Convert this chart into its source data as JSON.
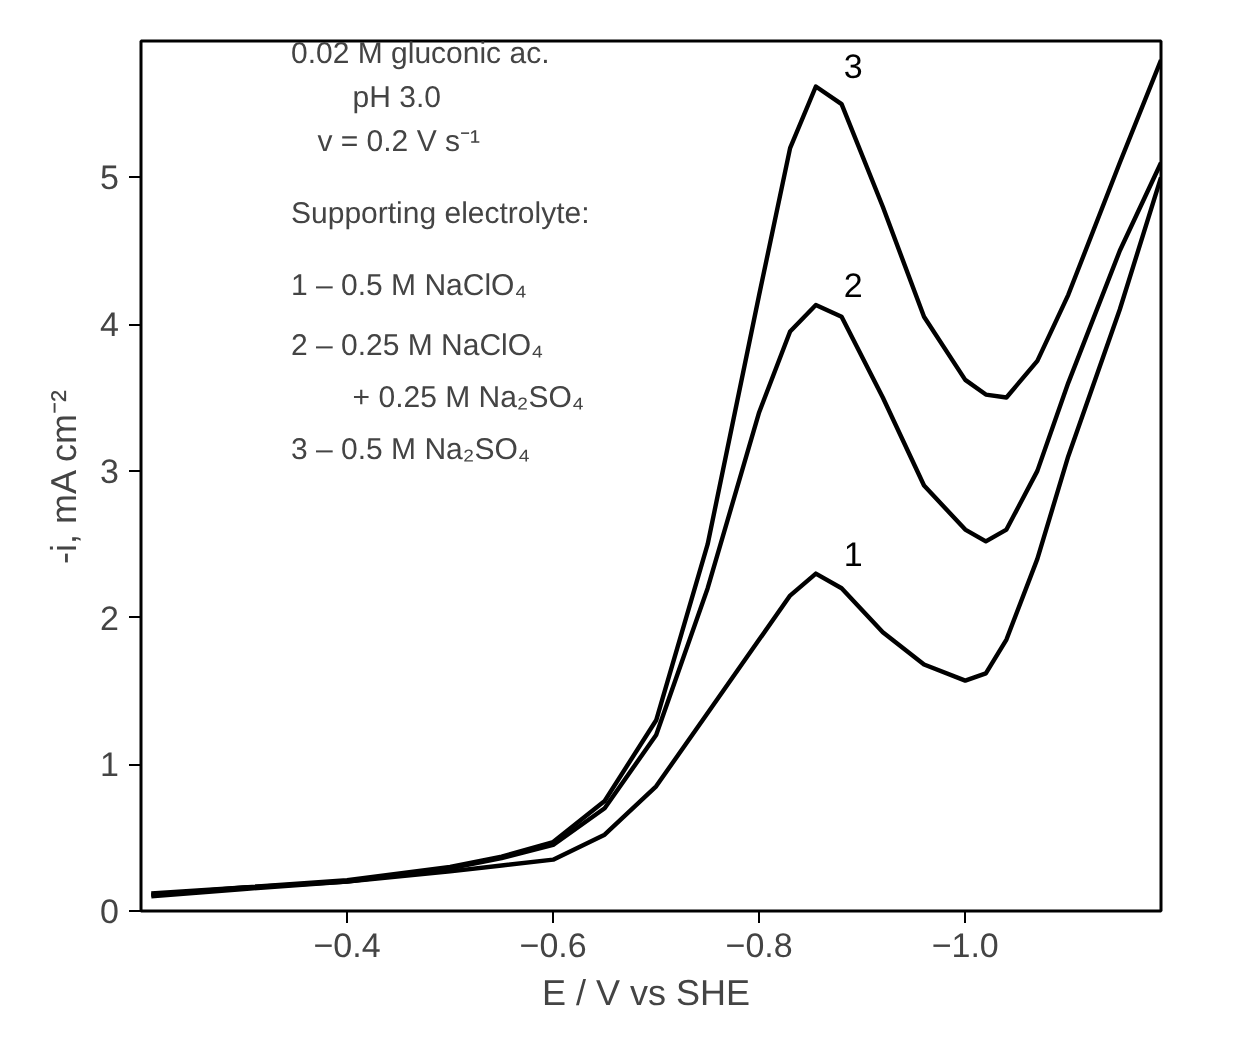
{
  "chart_data": {
    "type": "line",
    "xlabel": "E / V vs  SHE",
    "ylabel": "-i, mA cm⁻²",
    "xlim": [
      -0.2,
      -1.19
    ],
    "ylim": [
      0,
      5.93
    ],
    "xticks": [
      {
        "value": -0.4,
        "label": "−0.4"
      },
      {
        "value": -0.6,
        "label": "−0.6"
      },
      {
        "value": -0.8,
        "label": "−0.8"
      },
      {
        "value": -1.0,
        "label": "−1.0"
      }
    ],
    "yticks": [
      0,
      1,
      2,
      3,
      4,
      5
    ],
    "grid": false,
    "marker": "none",
    "line_style": "solid",
    "annotations": [
      "0.02 M gluconic ac.",
      "pH 3.0",
      "v = 0.2 V s⁻¹",
      "Supporting electrolyte:",
      "1 – 0.5 M NaClO₄",
      "2 – 0.25 M NaClO₄",
      "+ 0.25 M Na₂SO₄",
      "3 – 0.5 M Na₂SO₄"
    ],
    "x": [
      -0.21,
      -0.3,
      -0.4,
      -0.5,
      -0.55,
      -0.6,
      -0.65,
      -0.7,
      -0.75,
      -0.8,
      -0.83,
      -0.855,
      -0.88,
      -0.92,
      -0.96,
      -1.0,
      -1.02,
      -1.04,
      -1.07,
      -1.1,
      -1.15,
      -1.19
    ],
    "series": [
      {
        "name": "1",
        "color": "#000000",
        "values": [
          0.12,
          0.16,
          0.2,
          0.27,
          0.31,
          0.35,
          0.52,
          0.85,
          1.35,
          1.85,
          2.15,
          2.3,
          2.2,
          1.9,
          1.68,
          1.57,
          1.62,
          1.85,
          2.4,
          3.1,
          4.1,
          5.0
        ]
      },
      {
        "name": "2",
        "color": "#000000",
        "values": [
          0.1,
          0.15,
          0.2,
          0.29,
          0.36,
          0.45,
          0.7,
          1.2,
          2.2,
          3.4,
          3.95,
          4.13,
          4.05,
          3.5,
          2.9,
          2.6,
          2.52,
          2.6,
          3.0,
          3.6,
          4.5,
          5.1
        ]
      },
      {
        "name": "3",
        "color": "#000000",
        "values": [
          0.11,
          0.16,
          0.21,
          0.3,
          0.37,
          0.47,
          0.75,
          1.3,
          2.5,
          4.2,
          5.2,
          5.62,
          5.5,
          4.8,
          4.05,
          3.62,
          3.52,
          3.5,
          3.75,
          4.2,
          5.1,
          5.8
        ]
      }
    ]
  }
}
